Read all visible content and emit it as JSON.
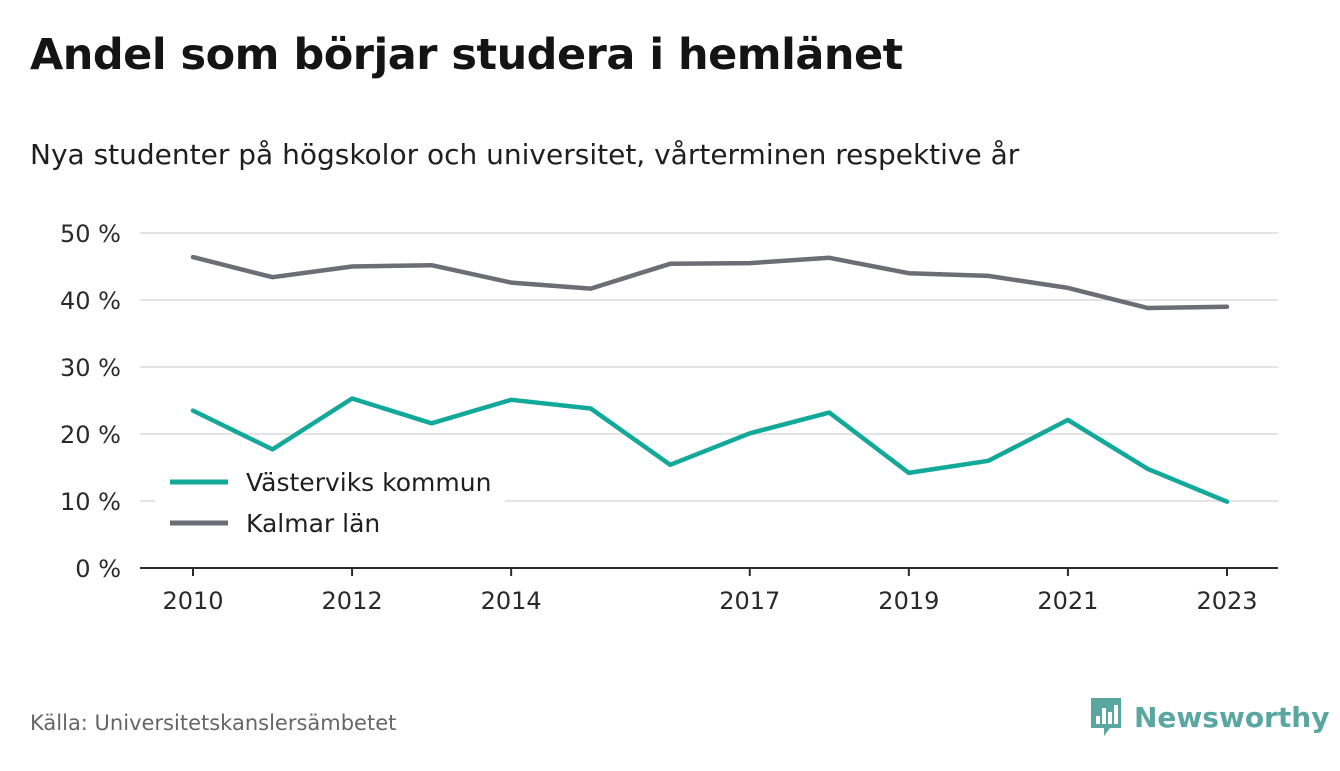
{
  "header": {
    "title": "Andel som börjar studera i hemlänet",
    "subtitle": "Nya studenter på högskolor och universitet, vårterminen respektive år"
  },
  "footer": {
    "source": "Källa: Universitetskanslersämbetet",
    "brand": "Newsworthy",
    "brand_color": "#5aa6a0"
  },
  "chart_data": {
    "type": "line",
    "title": "Andel som börjar studera i hemlänet",
    "subtitle": "Nya studenter på högskolor och universitet, vårterminen respektive år",
    "x": [
      2010,
      2011,
      2012,
      2013,
      2014,
      2015,
      2016,
      2017,
      2018,
      2019,
      2020,
      2021,
      2022,
      2023
    ],
    "x_tick_labels": [
      "2010",
      "2012",
      "2014",
      "2017",
      "2019",
      "2021",
      "2023"
    ],
    "y_tick_labels": [
      "0 %",
      "10 %",
      "20 %",
      "30 %",
      "40 %",
      "50 %"
    ],
    "y_ticks": [
      0,
      10,
      20,
      30,
      40,
      50
    ],
    "ylim": [
      0,
      50
    ],
    "grid": true,
    "legend_position": "bottom-left",
    "series": [
      {
        "name": "Västerviks kommun",
        "color": "#12a89a",
        "values": [
          23.5,
          17.7,
          25.3,
          21.6,
          25.1,
          23.8,
          15.4,
          20.1,
          23.2,
          14.2,
          16.0,
          22.1,
          14.8,
          9.9
        ]
      },
      {
        "name": "Kalmar län",
        "color": "#6d6d76",
        "values": [
          46.4,
          43.4,
          45.0,
          45.2,
          42.6,
          41.7,
          45.4,
          45.5,
          46.3,
          44.0,
          43.6,
          41.8,
          38.8,
          39.0
        ]
      }
    ]
  }
}
